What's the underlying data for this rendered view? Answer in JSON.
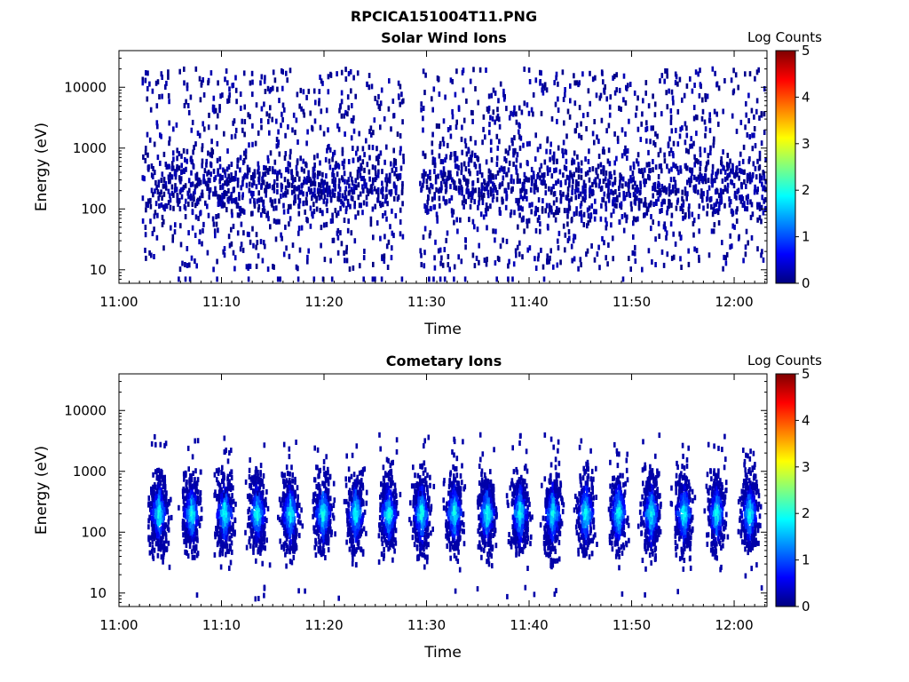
{
  "figure": {
    "title": "RPCICA151004T11.PNG"
  },
  "chart_data": [
    {
      "type": "heatmap",
      "title": "Solar Wind Ions",
      "xlabel": "Time",
      "ylabel": "Energy (eV)",
      "x_ticks": [
        "11:00",
        "11:10",
        "11:20",
        "11:30",
        "11:40",
        "11:50",
        "12:00"
      ],
      "x_tick_minutes": [
        0,
        10,
        20,
        30,
        40,
        50,
        60
      ],
      "xlim_minutes": [
        0,
        63.2
      ],
      "y_ticks": [
        "10",
        "100",
        "1000",
        "10000"
      ],
      "y_tick_values": [
        10,
        100,
        1000,
        10000
      ],
      "ylim": [
        6,
        40000
      ],
      "y_scale": "log",
      "colorbar": {
        "label": "Log Counts",
        "range": [
          0,
          5
        ],
        "ticks": [
          "0",
          "1",
          "2",
          "3",
          "4",
          "5"
        ],
        "colormap": "jet"
      },
      "data_time_range_minutes": [
        2.2,
        63.2
      ],
      "data_gaps_minutes": [
        [
          27.6,
          29.2
        ]
      ],
      "energy_band_eV": [
        10,
        20000
      ],
      "peak_energy_eV": 250,
      "typical_log_counts": [
        0,
        0.3
      ],
      "pattern": "sparse single-count pixels"
    },
    {
      "type": "heatmap",
      "title": "Cometary Ions",
      "xlabel": "Time",
      "ylabel": "Energy (eV)",
      "x_ticks": [
        "11:00",
        "11:10",
        "11:20",
        "11:30",
        "11:40",
        "11:50",
        "12:00"
      ],
      "x_tick_minutes": [
        0,
        10,
        20,
        30,
        40,
        50,
        60
      ],
      "xlim_minutes": [
        0,
        63.2
      ],
      "y_ticks": [
        "10",
        "100",
        "1000",
        "10000"
      ],
      "y_tick_values": [
        10,
        100,
        1000,
        10000
      ],
      "ylim": [
        6,
        40000
      ],
      "y_scale": "log",
      "colorbar": {
        "label": "Log Counts",
        "range": [
          0,
          5
        ],
        "ticks": [
          "0",
          "1",
          "2",
          "3",
          "4",
          "5"
        ],
        "colormap": "jet"
      },
      "data_time_range_minutes": [
        2.2,
        63.2
      ],
      "burst_period_minutes": 3.2,
      "energy_band_eV": [
        30,
        1200
      ],
      "peak_energy_eV": 200,
      "max_log_counts": 2.0,
      "pattern": "periodic bursts"
    }
  ]
}
